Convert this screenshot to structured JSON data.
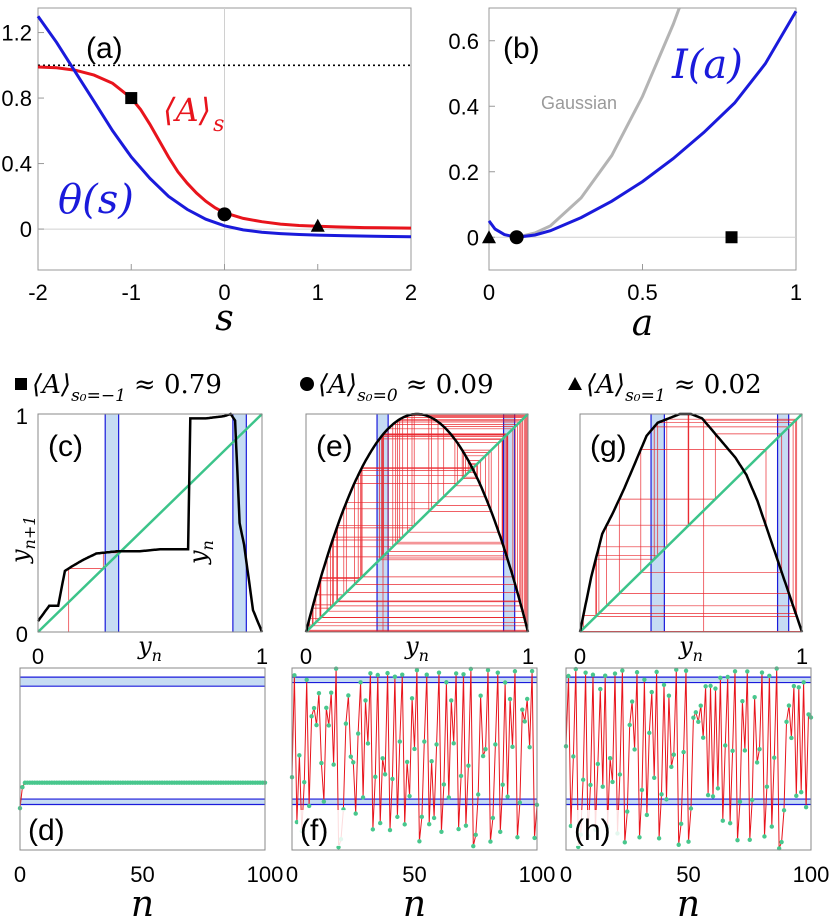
{
  "chart_data": [
    {
      "panel": "(a)",
      "type": "line",
      "xlabel": "s",
      "xlim": [
        -2,
        2
      ],
      "ylim": [
        -0.25,
        1.35
      ],
      "xticks": [
        "-2",
        "-1",
        "0",
        "1",
        "2"
      ],
      "yticks": [
        "0",
        "0.4",
        "0.8",
        "1.2"
      ],
      "reference_line": {
        "y": 1.0,
        "style": "dotted"
      },
      "series": [
        {
          "name": "⟨A⟩ₛ",
          "color": "#e8141c",
          "x": [
            -2.0,
            -1.8,
            -1.6,
            -1.4,
            -1.2,
            -1.0,
            -0.9,
            -0.8,
            -0.7,
            -0.6,
            -0.5,
            -0.4,
            -0.3,
            -0.2,
            -0.1,
            0.0,
            0.2,
            0.4,
            0.6,
            0.8,
            1.0,
            1.2,
            1.5,
            2.0
          ],
          "y": [
            0.99,
            0.985,
            0.97,
            0.94,
            0.89,
            0.8,
            0.73,
            0.64,
            0.54,
            0.44,
            0.35,
            0.28,
            0.22,
            0.17,
            0.13,
            0.1,
            0.065,
            0.045,
            0.03,
            0.022,
            0.017,
            0.013,
            0.009,
            0.006
          ]
        },
        {
          "name": "θ(s)",
          "color": "#1a1adb",
          "x": [
            -2.0,
            -1.8,
            -1.6,
            -1.4,
            -1.2,
            -1.0,
            -0.8,
            -0.6,
            -0.4,
            -0.2,
            0.0,
            0.2,
            0.4,
            0.6,
            0.8,
            1.0,
            1.3,
            1.6,
            2.0
          ],
          "y": [
            1.3,
            1.14,
            0.96,
            0.78,
            0.6,
            0.44,
            0.31,
            0.2,
            0.12,
            0.06,
            0.02,
            -0.005,
            -0.02,
            -0.028,
            -0.033,
            -0.037,
            -0.041,
            -0.044,
            -0.047
          ]
        }
      ],
      "markers": [
        {
          "shape": "square",
          "x": -1.0,
          "y": 0.8
        },
        {
          "shape": "circle",
          "x": 0.0,
          "y": 0.09
        },
        {
          "shape": "triangle",
          "x": 1.0,
          "y": 0.02
        }
      ],
      "labels": {
        "A": "⟨A⟩",
        "A_sub": "s",
        "theta": "θ(s)"
      }
    },
    {
      "panel": "(b)",
      "type": "line",
      "xlabel": "a",
      "xlim": [
        0,
        1
      ],
      "ylim": [
        -0.1,
        0.7
      ],
      "xticks": [
        "0",
        "0.5",
        "1"
      ],
      "yticks": [
        "0",
        "0.2",
        "0.4",
        "0.6"
      ],
      "series": [
        {
          "name": "I(a)",
          "color": "#1a1adb",
          "x": [
            0.0,
            0.02,
            0.05,
            0.09,
            0.15,
            0.2,
            0.3,
            0.4,
            0.5,
            0.6,
            0.7,
            0.8,
            0.9,
            1.0
          ],
          "y": [
            0.05,
            0.025,
            0.008,
            0.0,
            0.007,
            0.02,
            0.06,
            0.11,
            0.17,
            0.24,
            0.32,
            0.41,
            0.53,
            0.69
          ]
        },
        {
          "name": "Gaussian",
          "color": "#b4b4b4",
          "x": [
            0.09,
            0.15,
            0.2,
            0.3,
            0.4,
            0.5,
            0.6,
            0.62
          ],
          "y": [
            0.0,
            0.013,
            0.035,
            0.12,
            0.25,
            0.43,
            0.65,
            0.7
          ]
        }
      ],
      "markers": [
        {
          "shape": "triangle",
          "x": 0.0,
          "y": 0.0
        },
        {
          "shape": "circle",
          "x": 0.09,
          "y": 0.0
        },
        {
          "shape": "square",
          "x": 0.79,
          "y": 0.0
        }
      ],
      "labels": {
        "I": "I(a)",
        "gaussian": "Gaussian"
      }
    }
  ],
  "captions": [
    {
      "marker": "square",
      "text": "⟨A⟩",
      "sub": "s₀=−1",
      "approx": "≈ 0.79"
    },
    {
      "marker": "circle",
      "text": "⟨A⟩",
      "sub": "s₀=0",
      "approx": "≈ 0.09"
    },
    {
      "marker": "triangle",
      "text": "⟨A⟩",
      "sub": "s₀=1",
      "approx": "≈ 0.02"
    }
  ],
  "map_panels": [
    {
      "label": "(c)",
      "ylabel": "y",
      "ylabel_sub": "n+1",
      "xlabel": "y",
      "xlabel_sub": "n",
      "inner_label": "y",
      "inner_label_sub": "n",
      "xticks": [
        "0",
        "1"
      ],
      "yticks": [
        "0",
        "1"
      ],
      "map": {
        "x": [
          0.0,
          0.05,
          0.09,
          0.12,
          0.15,
          0.2,
          0.26,
          0.35,
          0.45,
          0.55,
          0.67,
          0.68,
          0.75,
          0.83,
          0.86,
          0.88,
          0.9,
          0.92,
          0.94,
          0.96,
          1.0
        ],
        "y": [
          0.05,
          0.12,
          0.12,
          0.28,
          0.3,
          0.33,
          0.36,
          0.37,
          0.37,
          0.38,
          0.38,
          0.98,
          0.98,
          0.99,
          1.0,
          0.97,
          0.5,
          0.4,
          0.25,
          0.1,
          0.0
        ]
      },
      "bands": [
        [
          0.3,
          0.36
        ],
        [
          0.87,
          0.93
        ]
      ]
    },
    {
      "label": "(e)",
      "xlabel": "y",
      "xlabel_sub": "n",
      "xticks": [
        "0",
        "1"
      ],
      "map": {
        "type": "logistic",
        "r": 4.0
      },
      "bands": [
        [
          0.32,
          0.37
        ],
        [
          0.89,
          0.94
        ]
      ]
    },
    {
      "label": "(g)",
      "xlabel": "y",
      "xlabel_sub": "n",
      "xticks": [
        "0",
        "1"
      ],
      "map": {
        "x": [
          0.0,
          0.05,
          0.1,
          0.15,
          0.2,
          0.25,
          0.3,
          0.35,
          0.4,
          0.45,
          0.5,
          0.55,
          0.6,
          0.65,
          0.7,
          0.75,
          0.8,
          0.85,
          0.9,
          0.95,
          1.0
        ],
        "y": [
          0.0,
          0.25,
          0.45,
          0.55,
          0.66,
          0.78,
          0.9,
          0.96,
          0.98,
          1.0,
          1.0,
          0.98,
          0.92,
          0.86,
          0.8,
          0.72,
          0.6,
          0.45,
          0.3,
          0.15,
          0.0
        ]
      },
      "bands": [
        [
          0.32,
          0.38
        ],
        [
          0.89,
          0.94
        ]
      ]
    }
  ],
  "series_panels": [
    {
      "label": "(d)",
      "xlabel": "n",
      "xticks": [
        "0",
        "50",
        "100"
      ],
      "band_top": [
        0.9,
        0.95
      ],
      "band_bottom": [
        0.25,
        0.28
      ]
    },
    {
      "label": "(f)",
      "xlabel": "n",
      "xticks": [
        "0",
        "50",
        "100"
      ],
      "band_top": [
        0.92,
        0.95
      ],
      "band_bottom": [
        0.25,
        0.28
      ]
    },
    {
      "label": "(h)",
      "xlabel": "n",
      "xticks": [
        "0",
        "50",
        "100"
      ],
      "band_top": [
        0.92,
        0.95
      ],
      "band_bottom": [
        0.25,
        0.28
      ]
    }
  ],
  "colors": {
    "red": "#e8141c",
    "blue": "#1a1adb",
    "gray": "#b4b4b4",
    "green": "#3cc48a",
    "band": "#c6dcf3",
    "dot": "#48c78d"
  }
}
